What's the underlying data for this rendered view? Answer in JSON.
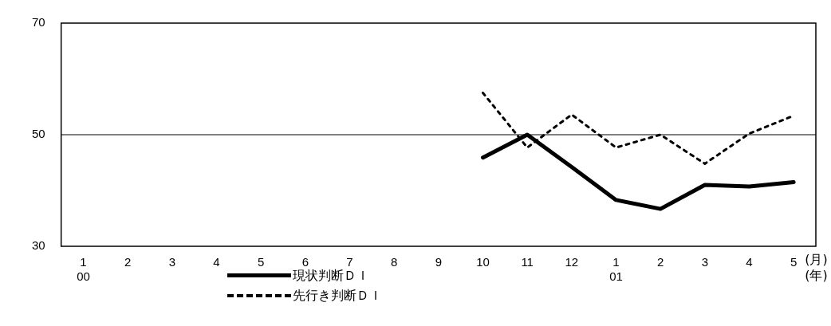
{
  "chart_data": {
    "type": "line",
    "xlabel": "(月)\n(年)",
    "categories": [
      "1\n00",
      "2",
      "3",
      "4",
      "5",
      "6",
      "7",
      "8",
      "9",
      "10",
      "11",
      "12",
      "1\n01",
      "2",
      "3",
      "4",
      "5"
    ],
    "series": [
      {
        "name": "現状判断ＤＩ",
        "color": "#000000",
        "line_style": "solid",
        "values": [
          null,
          null,
          null,
          null,
          null,
          null,
          null,
          null,
          null,
          45.9,
          50,
          44.2,
          38.3,
          36.7,
          41.0,
          40.7,
          41.5
        ]
      },
      {
        "name": "先行き判断ＤＩ",
        "color": "#000000",
        "line_style": "dotted",
        "values": [
          null,
          null,
          null,
          null,
          null,
          null,
          null,
          null,
          null,
          57.5,
          47.7,
          53.6,
          47.7,
          50,
          44.8,
          50.2,
          53.4
        ]
      }
    ],
    "ylim": [
      30,
      70
    ],
    "yticks": [
      30,
      50,
      70
    ],
    "grid": false,
    "legend": "bottom",
    "marker": "none",
    "ref_lines": [
      {
        "axis": "y",
        "value": 50,
        "color": "#000000"
      }
    ]
  }
}
